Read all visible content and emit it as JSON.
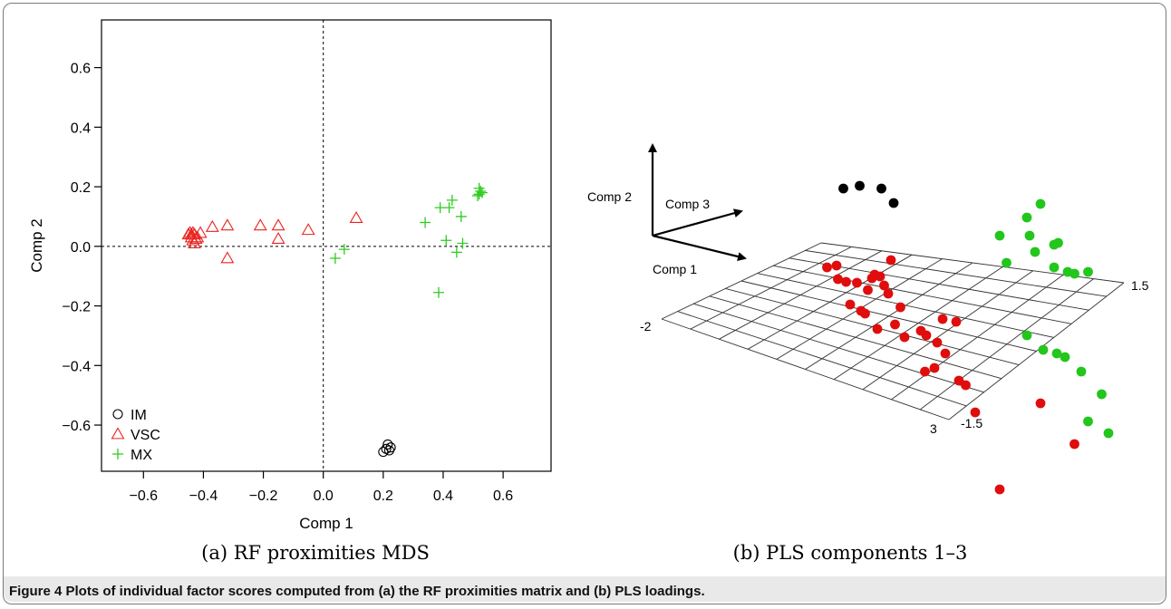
{
  "caption": "Figure 4 Plots of individual factor scores computed from (a) the RF proximities matrix and (b) PLS loadings.",
  "colors": {
    "IM": "#000000",
    "VSC": "#e8231f",
    "MX": "#2ecc1f",
    "red_dot": "#e00d0d",
    "green_dot": "#22c61c"
  },
  "chart_data": [
    {
      "type": "scatter",
      "subcaption": "(a) RF proximities MDS",
      "xlabel": "Comp 1",
      "ylabel": "Comp 2",
      "xlim": [
        -0.74,
        0.76
      ],
      "ylim": [
        -0.755,
        0.76
      ],
      "xticks": [
        "−0.6",
        "−0.4",
        "−0.2",
        "0.0",
        "0.2",
        "0.4",
        "0.6"
      ],
      "yticks": [
        "−0.6",
        "−0.4",
        "−0.2",
        "0.0",
        "0.2",
        "0.4",
        "0.6"
      ],
      "zero_lines": true,
      "legend": {
        "placement": "bottom-left",
        "entries": [
          "IM",
          "VSC",
          "MX"
        ]
      },
      "series": [
        {
          "name": "IM",
          "marker": "circle",
          "points": [
            [
              0.2,
              -0.69
            ],
            [
              0.21,
              -0.68
            ],
            [
              0.22,
              -0.685
            ],
            [
              0.215,
              -0.665
            ],
            [
              0.225,
              -0.675
            ]
          ]
        },
        {
          "name": "VSC",
          "marker": "triangle",
          "points": [
            [
              -0.45,
              0.04
            ],
            [
              -0.445,
              0.045
            ],
            [
              -0.44,
              0.04
            ],
            [
              -0.435,
              0.045
            ],
            [
              -0.43,
              0.04
            ],
            [
              -0.44,
              0.03
            ],
            [
              -0.435,
              0.02
            ],
            [
              -0.425,
              0.025
            ],
            [
              -0.42,
              0.03
            ],
            [
              -0.41,
              0.045
            ],
            [
              -0.43,
              0.01
            ],
            [
              -0.37,
              0.065
            ],
            [
              -0.32,
              0.07
            ],
            [
              -0.21,
              0.07
            ],
            [
              -0.15,
              0.07
            ],
            [
              -0.15,
              0.025
            ],
            [
              -0.05,
              0.055
            ],
            [
              0.11,
              0.095
            ],
            [
              -0.32,
              -0.04
            ]
          ]
        },
        {
          "name": "MX",
          "marker": "plus",
          "points": [
            [
              0.52,
              0.195
            ],
            [
              0.525,
              0.185
            ],
            [
              0.52,
              0.175
            ],
            [
              0.53,
              0.18
            ],
            [
              0.515,
              0.17
            ],
            [
              0.43,
              0.155
            ],
            [
              0.39,
              0.13
            ],
            [
              0.42,
              0.13
            ],
            [
              0.46,
              0.1
            ],
            [
              0.34,
              0.08
            ],
            [
              0.41,
              0.02
            ],
            [
              0.445,
              -0.02
            ],
            [
              0.465,
              0.01
            ],
            [
              0.07,
              -0.01
            ],
            [
              0.04,
              -0.04
            ],
            [
              0.385,
              -0.155
            ]
          ]
        }
      ]
    },
    {
      "type": "scatter",
      "subcaption": "(b) PLS components 1–3",
      "axis_labels": [
        "Comp 2",
        "Comp 3",
        "Comp 1"
      ],
      "grid_tick_labels": [
        "1.5",
        "-2",
        "3",
        "-1.5"
      ],
      "grid": true,
      "series": [
        {
          "name": "",
          "color": "black",
          "points": [
            [
              0.15,
              0.92
            ],
            [
              0.27,
              0.95
            ],
            [
              0.43,
              0.92
            ],
            [
              0.52,
              0.76
            ]
          ]
        },
        {
          "name": "",
          "color": "red",
          "points": [
            [
              0.03,
              0.05
            ],
            [
              0.1,
              0.07
            ],
            [
              0.11,
              -0.08
            ],
            [
              0.17,
              -0.11
            ],
            [
              0.25,
              -0.12
            ],
            [
              0.33,
              -0.2
            ],
            [
              0.36,
              -0.07
            ],
            [
              0.38,
              -0.03
            ],
            [
              0.42,
              -0.05
            ],
            [
              0.45,
              -0.15
            ],
            [
              0.48,
              -0.24
            ],
            [
              0.5,
              0.13
            ],
            [
              0.2,
              -0.36
            ],
            [
              0.28,
              -0.43
            ],
            [
              0.31,
              -0.46
            ],
            [
              0.57,
              -0.39
            ],
            [
              0.53,
              -0.58
            ],
            [
              0.6,
              -0.72
            ],
            [
              0.72,
              -0.65
            ],
            [
              0.76,
              -0.7
            ],
            [
              0.4,
              -0.63
            ],
            [
              0.82,
              -1.06
            ],
            [
              0.88,
              -0.52
            ],
            [
              0.98,
              -0.55
            ],
            [
              0.84,
              -0.78
            ],
            [
              0.9,
              -0.9
            ],
            [
              0.75,
              -1.1
            ],
            [
              1.0,
              -1.2
            ],
            [
              1.05,
              -1.25
            ],
            [
              1.12,
              -1.55
            ],
            [
              1.6,
              -1.45
            ],
            [
              1.85,
              -1.9
            ],
            [
              1.3,
              -2.4
            ]
          ]
        },
        {
          "name": "",
          "color": "green",
          "points": [
            [
              1.3,
              0.4
            ],
            [
              1.5,
              0.6
            ],
            [
              1.6,
              0.75
            ],
            [
              1.52,
              0.4
            ],
            [
              1.56,
              0.22
            ],
            [
              1.7,
              0.3
            ],
            [
              1.73,
              0.32
            ],
            [
              1.35,
              0.1
            ],
            [
              1.7,
              0.05
            ],
            [
              1.8,
              0.0
            ],
            [
              1.85,
              -0.02
            ],
            [
              1.95,
              0.0
            ],
            [
              1.5,
              -0.7
            ],
            [
              1.62,
              -0.86
            ],
            [
              1.72,
              -0.9
            ],
            [
              1.78,
              -0.94
            ],
            [
              1.9,
              -1.1
            ],
            [
              2.05,
              -1.35
            ],
            [
              1.95,
              -1.65
            ],
            [
              2.1,
              -1.78
            ]
          ]
        }
      ]
    }
  ]
}
